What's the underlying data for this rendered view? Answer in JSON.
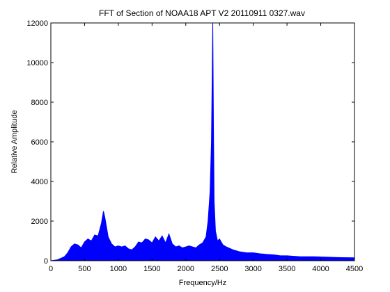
{
  "chart_data": {
    "type": "line",
    "title": "FFT of Section of NOAA18 APT V2 20110911 0327.wav",
    "xlabel": "Frequency/Hz",
    "ylabel": "Relative Amplitude",
    "xlim": [
      0,
      4500
    ],
    "ylim": [
      0,
      12000
    ],
    "x_ticks": [
      0,
      500,
      1000,
      1500,
      2000,
      2500,
      3000,
      3500,
      4000,
      4500
    ],
    "y_ticks": [
      0,
      2000,
      4000,
      6000,
      8000,
      10000,
      12000
    ],
    "grid": false,
    "legend": "none",
    "series": [
      {
        "color": "#0000ff",
        "x": [
          0,
          100,
          200,
          250,
          300,
          350,
          400,
          450,
          500,
          550,
          600,
          650,
          700,
          750,
          780,
          800,
          850,
          900,
          950,
          1000,
          1050,
          1100,
          1150,
          1200,
          1250,
          1300,
          1350,
          1400,
          1450,
          1500,
          1550,
          1600,
          1650,
          1700,
          1750,
          1800,
          1850,
          1900,
          1950,
          2000,
          2050,
          2100,
          2150,
          2200,
          2250,
          2300,
          2330,
          2360,
          2380,
          2400,
          2410,
          2420,
          2440,
          2470,
          2500,
          2550,
          2600,
          2700,
          2800,
          2900,
          3000,
          3100,
          3200,
          3300,
          3400,
          3500,
          3700,
          3900,
          4100,
          4300,
          4500
        ],
        "values": [
          0,
          50,
          200,
          400,
          700,
          850,
          800,
          650,
          950,
          1100,
          1000,
          1300,
          1250,
          1900,
          2500,
          2200,
          1200,
          850,
          700,
          750,
          700,
          750,
          600,
          550,
          700,
          950,
          900,
          1100,
          1050,
          900,
          1200,
          1000,
          1250,
          900,
          1350,
          850,
          700,
          750,
          650,
          700,
          750,
          700,
          650,
          800,
          900,
          1200,
          2000,
          3500,
          6000,
          12000,
          6900,
          3000,
          1500,
          1000,
          1100,
          800,
          700,
          550,
          450,
          400,
          400,
          350,
          320,
          300,
          250,
          250,
          200,
          200,
          180,
          160,
          150
        ]
      }
    ]
  }
}
